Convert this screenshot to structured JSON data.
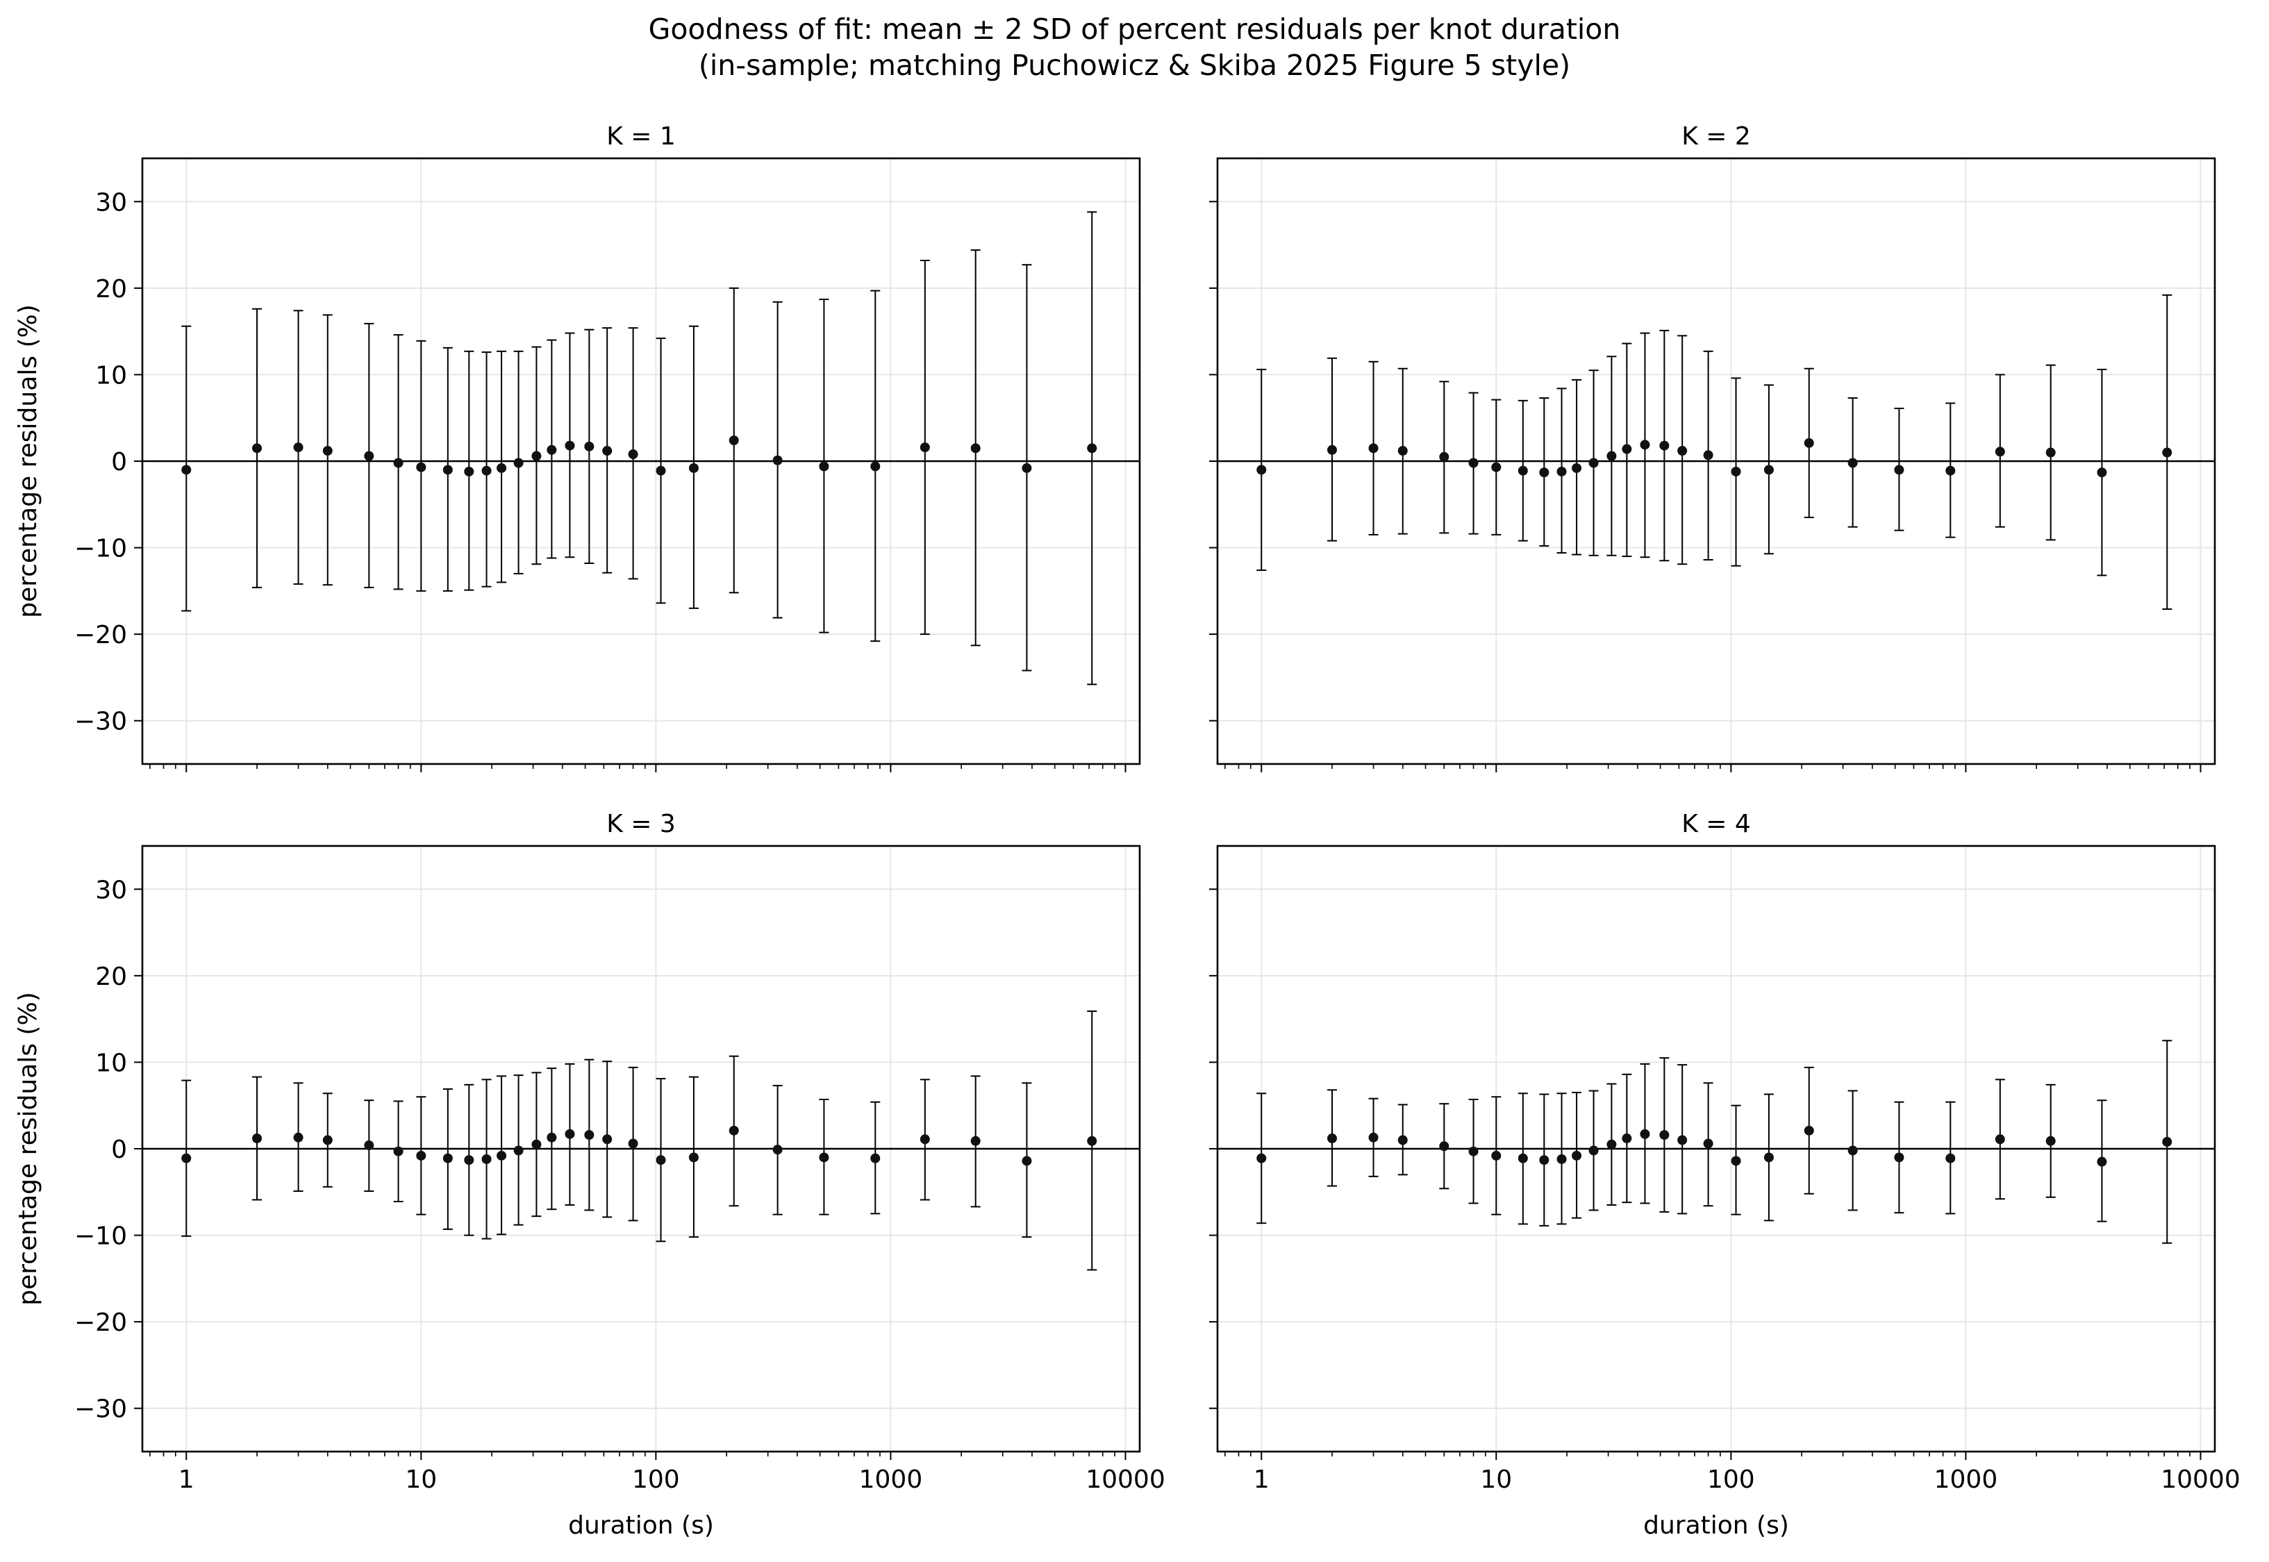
{
  "figure": {
    "title_line1": "Goodness of fit: mean ± 2 SD of percent residuals per knot duration",
    "title_line2": "(in-sample; matching Puchowicz & Skiba 2025 Figure 5 style)"
  },
  "chart_data": [
    {
      "type": "scatter",
      "panel": "K = 1",
      "title": "K = 1",
      "xlabel": "",
      "ylabel": "percentage residuals  (%)",
      "xscale": "log",
      "xlim": [
        0.65,
        11500
      ],
      "ylim": [
        -35,
        35
      ],
      "xticks": [
        "1",
        "10",
        "100",
        "1000",
        "10000"
      ],
      "show_xtick_labels": false,
      "show_ytick_labels": true,
      "yticks": [
        -30,
        -20,
        -10,
        0,
        10,
        20,
        30
      ],
      "grid": true,
      "zero_line": true,
      "error_bars": "mean ± 2 SD",
      "x": [
        1,
        2,
        3,
        4,
        6,
        8,
        10,
        13,
        16,
        19,
        22,
        26,
        31,
        36,
        43,
        52,
        62,
        80,
        105,
        145,
        215,
        330,
        520,
        860,
        1400,
        2300,
        3800,
        7200
      ],
      "mean": [
        -1.0,
        1.5,
        1.6,
        1.2,
        0.6,
        -0.2,
        -0.7,
        -1.0,
        -1.2,
        -1.1,
        -0.8,
        -0.2,
        0.6,
        1.3,
        1.8,
        1.7,
        1.2,
        0.8,
        -1.1,
        -0.8,
        2.4,
        0.1,
        -0.6,
        -0.6,
        1.6,
        1.5,
        -0.8,
        1.5
      ],
      "lower": [
        -17.3,
        -14.6,
        -14.2,
        -14.3,
        -14.6,
        -14.8,
        -15.0,
        -15.0,
        -14.9,
        -14.5,
        -14.0,
        -13.0,
        -11.9,
        -11.2,
        -11.1,
        -11.8,
        -12.9,
        -13.6,
        -16.4,
        -17.0,
        -15.2,
        -18.1,
        -19.8,
        -20.8,
        -20.0,
        -21.3,
        -24.2,
        -25.8
      ],
      "upper": [
        15.6,
        17.6,
        17.4,
        16.9,
        15.9,
        14.6,
        13.9,
        13.1,
        12.7,
        12.6,
        12.7,
        12.7,
        13.2,
        14.0,
        14.8,
        15.2,
        15.4,
        15.4,
        14.2,
        15.6,
        20.0,
        18.4,
        18.7,
        19.7,
        23.2,
        24.4,
        22.7,
        28.8
      ]
    },
    {
      "type": "scatter",
      "panel": "K = 2",
      "title": "K = 2",
      "xlabel": "",
      "ylabel": "",
      "xscale": "log",
      "xlim": [
        0.65,
        11500
      ],
      "ylim": [
        -35,
        35
      ],
      "xticks": [
        "1",
        "10",
        "100",
        "1000",
        "10000"
      ],
      "show_xtick_labels": false,
      "show_ytick_labels": false,
      "yticks": [
        -30,
        -20,
        -10,
        0,
        10,
        20,
        30
      ],
      "grid": true,
      "zero_line": true,
      "error_bars": "mean ± 2 SD",
      "x": [
        1,
        2,
        3,
        4,
        6,
        8,
        10,
        13,
        16,
        19,
        22,
        26,
        31,
        36,
        43,
        52,
        62,
        80,
        105,
        145,
        215,
        330,
        520,
        860,
        1400,
        2300,
        3800,
        7200
      ],
      "mean": [
        -1.0,
        1.3,
        1.5,
        1.2,
        0.5,
        -0.2,
        -0.7,
        -1.1,
        -1.3,
        -1.2,
        -0.8,
        -0.2,
        0.6,
        1.4,
        1.9,
        1.8,
        1.2,
        0.7,
        -1.2,
        -1.0,
        2.1,
        -0.2,
        -1.0,
        -1.1,
        1.1,
        1.0,
        -1.3,
        1.0
      ],
      "lower": [
        -12.6,
        -9.2,
        -8.5,
        -8.4,
        -8.3,
        -8.4,
        -8.5,
        -9.2,
        -9.8,
        -10.6,
        -10.8,
        -10.9,
        -10.9,
        -11.0,
        -11.1,
        -11.5,
        -11.9,
        -11.4,
        -12.1,
        -10.7,
        -6.5,
        -7.6,
        -8.0,
        -8.8,
        -7.6,
        -9.1,
        -13.2,
        -17.1
      ],
      "upper": [
        10.6,
        11.9,
        11.5,
        10.7,
        9.2,
        7.9,
        7.1,
        7.0,
        7.3,
        8.4,
        9.4,
        10.5,
        12.1,
        13.6,
        14.8,
        15.1,
        14.5,
        12.7,
        9.6,
        8.8,
        10.7,
        7.3,
        6.1,
        6.7,
        10.0,
        11.1,
        10.6,
        19.2
      ]
    },
    {
      "type": "scatter",
      "panel": "K = 3",
      "title": "K = 3",
      "xlabel": "duration (s)",
      "ylabel": "percentage residuals  (%)",
      "xscale": "log",
      "xlim": [
        0.65,
        11500
      ],
      "ylim": [
        -35,
        35
      ],
      "xticks": [
        "1",
        "10",
        "100",
        "1000",
        "10000"
      ],
      "show_xtick_labels": true,
      "show_ytick_labels": true,
      "yticks": [
        -30,
        -20,
        -10,
        0,
        10,
        20,
        30
      ],
      "grid": true,
      "zero_line": true,
      "error_bars": "mean ± 2 SD",
      "x": [
        1,
        2,
        3,
        4,
        6,
        8,
        10,
        13,
        16,
        19,
        22,
        26,
        31,
        36,
        43,
        52,
        62,
        80,
        105,
        145,
        215,
        330,
        520,
        860,
        1400,
        2300,
        3800,
        7200
      ],
      "mean": [
        -1.1,
        1.2,
        1.3,
        1.0,
        0.4,
        -0.3,
        -0.8,
        -1.1,
        -1.3,
        -1.2,
        -0.8,
        -0.2,
        0.5,
        1.3,
        1.7,
        1.6,
        1.1,
        0.6,
        -1.3,
        -1.0,
        2.1,
        -0.1,
        -1.0,
        -1.1,
        1.1,
        0.9,
        -1.4,
        0.9
      ],
      "lower": [
        -10.1,
        -5.9,
        -4.9,
        -4.4,
        -4.9,
        -6.1,
        -7.6,
        -9.3,
        -10.0,
        -10.4,
        -9.9,
        -8.8,
        -7.8,
        -7.0,
        -6.5,
        -7.1,
        -7.9,
        -8.3,
        -10.7,
        -10.2,
        -6.6,
        -7.6,
        -7.6,
        -7.5,
        -5.9,
        -6.7,
        -10.2,
        -14.0
      ],
      "upper": [
        7.9,
        8.3,
        7.6,
        6.4,
        5.6,
        5.5,
        6.0,
        6.9,
        7.4,
        8.0,
        8.4,
        8.5,
        8.8,
        9.3,
        9.8,
        10.3,
        10.1,
        9.4,
        8.1,
        8.3,
        10.7,
        7.3,
        5.7,
        5.4,
        8.0,
        8.4,
        7.6,
        15.9
      ]
    },
    {
      "type": "scatter",
      "panel": "K = 4",
      "title": "K = 4",
      "xlabel": "duration (s)",
      "ylabel": "",
      "xscale": "log",
      "xlim": [
        0.65,
        11500
      ],
      "ylim": [
        -35,
        35
      ],
      "xticks": [
        "1",
        "10",
        "100",
        "1000",
        "10000"
      ],
      "show_xtick_labels": true,
      "show_ytick_labels": false,
      "yticks": [
        -30,
        -20,
        -10,
        0,
        10,
        20,
        30
      ],
      "grid": true,
      "zero_line": true,
      "error_bars": "mean ± 2 SD",
      "x": [
        1,
        2,
        3,
        4,
        6,
        8,
        10,
        13,
        16,
        19,
        22,
        26,
        31,
        36,
        43,
        52,
        62,
        80,
        105,
        145,
        215,
        330,
        520,
        860,
        1400,
        2300,
        3800,
        7200
      ],
      "mean": [
        -1.1,
        1.2,
        1.3,
        1.0,
        0.3,
        -0.3,
        -0.8,
        -1.1,
        -1.3,
        -1.2,
        -0.8,
        -0.2,
        0.5,
        1.2,
        1.7,
        1.6,
        1.0,
        0.6,
        -1.4,
        -1.0,
        2.1,
        -0.2,
        -1.0,
        -1.1,
        1.1,
        0.9,
        -1.5,
        0.8
      ],
      "lower": [
        -8.6,
        -4.3,
        -3.2,
        -3.0,
        -4.6,
        -6.3,
        -7.6,
        -8.7,
        -8.9,
        -8.7,
        -8.0,
        -7.1,
        -6.5,
        -6.2,
        -6.3,
        -7.3,
        -7.5,
        -6.6,
        -7.6,
        -8.3,
        -5.2,
        -7.1,
        -7.4,
        -7.5,
        -5.8,
        -5.6,
        -8.4,
        -10.9
      ],
      "upper": [
        6.4,
        6.8,
        5.8,
        5.1,
        5.2,
        5.7,
        6.0,
        6.4,
        6.3,
        6.4,
        6.5,
        6.7,
        7.5,
        8.6,
        9.8,
        10.5,
        9.7,
        7.6,
        5.0,
        6.3,
        9.4,
        6.7,
        5.4,
        5.4,
        8.0,
        7.4,
        5.6,
        12.5
      ]
    }
  ]
}
